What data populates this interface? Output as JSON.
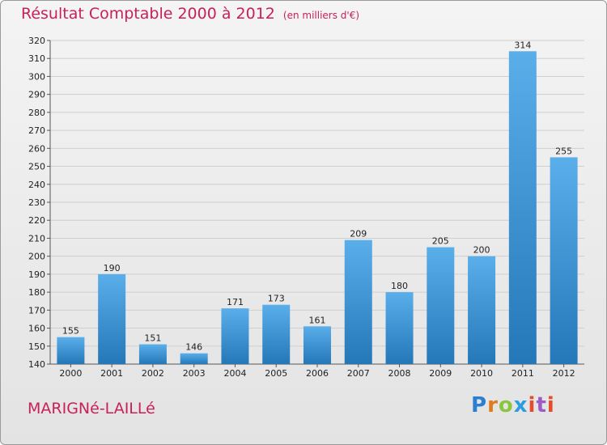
{
  "title": "Résultat Comptable 2000 à 2012",
  "subtitle": "(en milliers d'€)",
  "place": "MARIGNé-LAILLé",
  "brand": {
    "name": "Proxiti",
    "letters": [
      "P",
      "r",
      "o",
      "x",
      "i",
      "t",
      "i"
    ]
  },
  "colors": {
    "bar_top": "#5aaeea",
    "bar_bottom": "#2478b8",
    "title": "#c8205a",
    "grid": "#cfcfcf"
  },
  "chart_data": {
    "type": "bar",
    "categories": [
      "2000",
      "2001",
      "2002",
      "2003",
      "2004",
      "2005",
      "2006",
      "2007",
      "2008",
      "2009",
      "2010",
      "2011",
      "2012"
    ],
    "values": [
      155,
      190,
      151,
      146,
      171,
      173,
      161,
      209,
      180,
      205,
      200,
      314,
      255
    ],
    "ylim": [
      140,
      320
    ],
    "yticks": [
      140,
      150,
      160,
      170,
      180,
      190,
      200,
      210,
      220,
      230,
      240,
      250,
      260,
      270,
      280,
      290,
      300,
      310,
      320
    ],
    "grid": true,
    "xlabel": "",
    "ylabel": ""
  }
}
